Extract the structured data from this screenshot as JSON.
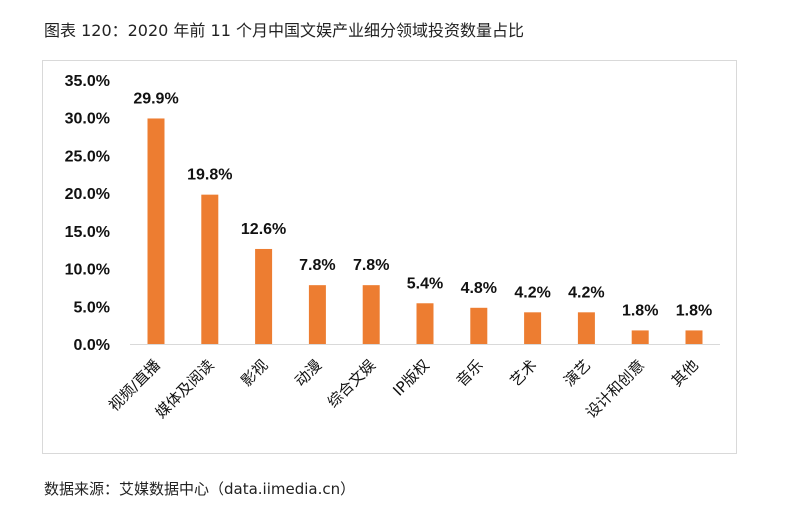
{
  "title": "图表 120：2020 年前 11 个月中国文娱产业细分领域投资数量占比",
  "source": "数据来源：艾媒数据中心（data.iimedia.cn）",
  "chart_data": {
    "type": "bar",
    "categories": [
      "视频/直播",
      "媒体及阅读",
      "影视",
      "动漫",
      "综合文娱",
      "IP版权",
      "音乐",
      "艺术",
      "演艺",
      "设计和创意",
      "其他"
    ],
    "values": [
      29.9,
      19.8,
      12.6,
      7.8,
      7.8,
      5.4,
      4.8,
      4.2,
      4.2,
      1.8,
      1.8
    ],
    "data_labels": [
      "29.9%",
      "19.8%",
      "12.6%",
      "7.8%",
      "7.8%",
      "5.4%",
      "4.8%",
      "4.2%",
      "4.2%",
      "1.8%",
      "1.8%"
    ],
    "yticks": [
      "0.0%",
      "5.0%",
      "10.0%",
      "15.0%",
      "20.0%",
      "25.0%",
      "30.0%",
      "35.0%"
    ],
    "ylim": [
      0,
      35
    ],
    "grid": false,
    "bar_color": "#ed7d31"
  }
}
